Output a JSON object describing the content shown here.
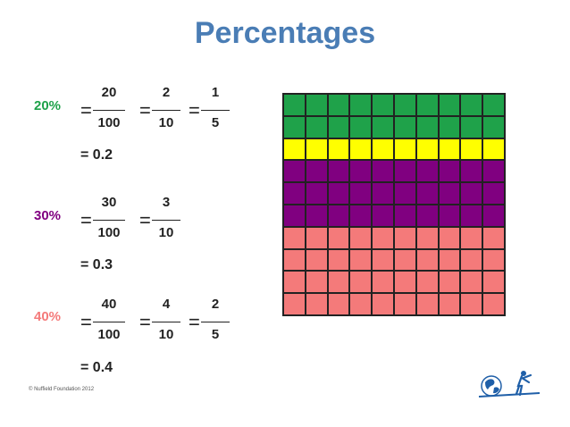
{
  "title": "Percentages",
  "colors": {
    "title": "#4a7db5",
    "green": "#1fa24a",
    "yellow": "#ffff00",
    "purple": "#800080",
    "salmon": "#f47a7a"
  },
  "rows": [
    {
      "percent": "20%",
      "percent_color": "#1fa24a",
      "fractions": [
        {
          "num": "20",
          "den": "100"
        },
        {
          "num": "2",
          "den": "10"
        },
        {
          "num": "1",
          "den": "5"
        }
      ],
      "decimal": "= 0.2"
    },
    {
      "percent": "30%",
      "percent_color": "#800080",
      "fractions": [
        {
          "num": "30",
          "den": "100"
        },
        {
          "num": "3",
          "den": "10"
        }
      ],
      "decimal": "= 0.3"
    },
    {
      "percent": "40%",
      "percent_color": "#f47a7a",
      "fractions": [
        {
          "num": "40",
          "den": "100"
        },
        {
          "num": "4",
          "den": "10"
        },
        {
          "num": "2",
          "den": "5"
        }
      ],
      "decimal": "= 0.4"
    }
  ],
  "equals_sign": "=",
  "hundred_grid": {
    "rows": 10,
    "cols": 10,
    "row_colors": [
      "green",
      "green",
      "yellow",
      "purple",
      "purple",
      "purple",
      "salmon",
      "salmon",
      "salmon",
      "salmon"
    ]
  },
  "footer": {
    "copyright": "© Nuffield Foundation 2012",
    "logo": "nuffield-logo"
  }
}
